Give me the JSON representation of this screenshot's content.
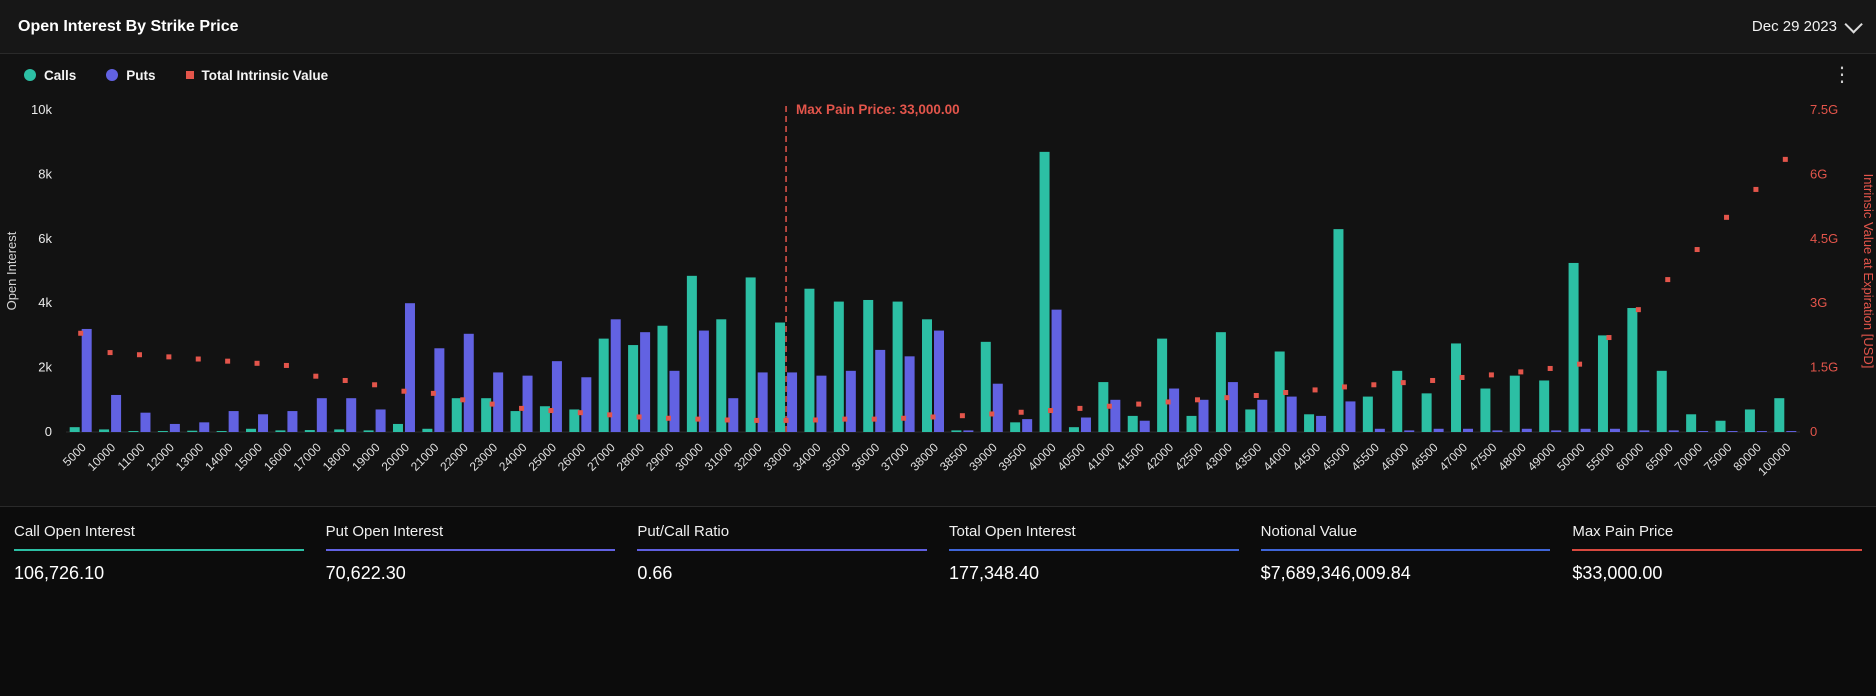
{
  "header": {
    "title": "Open Interest By Strike Price",
    "date": "Dec 29 2023"
  },
  "menu": {
    "kebab_icon": "⋮"
  },
  "chart_data": {
    "type": "bar",
    "title": "Open Interest By Strike Price",
    "categories": [
      "5000",
      "10000",
      "11000",
      "12000",
      "13000",
      "14000",
      "15000",
      "16000",
      "17000",
      "18000",
      "19000",
      "20000",
      "21000",
      "22000",
      "23000",
      "24000",
      "25000",
      "26000",
      "27000",
      "28000",
      "29000",
      "30000",
      "31000",
      "32000",
      "33000",
      "34000",
      "35000",
      "36000",
      "37000",
      "38000",
      "38500",
      "39000",
      "39500",
      "40000",
      "40500",
      "41000",
      "41500",
      "42000",
      "42500",
      "43000",
      "43500",
      "44000",
      "44500",
      "45000",
      "45500",
      "46000",
      "46500",
      "47000",
      "47500",
      "48000",
      "49000",
      "50000",
      "55000",
      "60000",
      "65000",
      "70000",
      "75000",
      "80000",
      "100000"
    ],
    "series": [
      {
        "name": "Calls",
        "type": "bar",
        "axis": "left",
        "color": "#2cbfa4",
        "values": [
          150,
          80,
          30,
          30,
          40,
          30,
          100,
          50,
          60,
          80,
          50,
          250,
          100,
          1050,
          1050,
          650,
          800,
          700,
          2900,
          2700,
          3300,
          4850,
          3500,
          4800,
          3400,
          4450,
          4050,
          4100,
          4050,
          3500,
          50,
          2800,
          300,
          8700,
          150,
          1550,
          500,
          2900,
          500,
          3100,
          700,
          2500,
          550,
          6300,
          1100,
          1900,
          1200,
          2750,
          1350,
          1750,
          1600,
          5250,
          3000,
          3850,
          1900,
          550,
          350,
          700,
          1050
        ]
      },
      {
        "name": "Puts",
        "type": "bar",
        "axis": "left",
        "color": "#6262e2",
        "values": [
          3200,
          1150,
          600,
          250,
          300,
          650,
          550,
          650,
          1050,
          1050,
          700,
          4000,
          2600,
          3050,
          1850,
          1750,
          2200,
          1700,
          3500,
          3100,
          1900,
          3150,
          1050,
          1850,
          1850,
          1750,
          1900,
          2550,
          2350,
          3150,
          50,
          1500,
          400,
          3800,
          450,
          1000,
          350,
          1350,
          1000,
          1550,
          1000,
          1100,
          500,
          950,
          100,
          50,
          100,
          100,
          50,
          100,
          50,
          100,
          100,
          50,
          50,
          30,
          30,
          30,
          30
        ]
      },
      {
        "name": "Total Intrinsic Value",
        "type": "scatter",
        "axis": "right",
        "color": "#e3554b",
        "unit": "G",
        "values": [
          2.3,
          1.85,
          1.8,
          1.75,
          1.7,
          1.65,
          1.6,
          1.55,
          1.3,
          1.2,
          1.1,
          0.95,
          0.9,
          0.75,
          0.65,
          0.55,
          0.5,
          0.45,
          0.4,
          0.35,
          0.32,
          0.3,
          0.28,
          0.27,
          0.27,
          0.28,
          0.3,
          0.3,
          0.32,
          0.35,
          0.38,
          0.42,
          0.46,
          0.5,
          0.55,
          0.6,
          0.65,
          0.7,
          0.75,
          0.8,
          0.85,
          0.92,
          0.98,
          1.05,
          1.1,
          1.15,
          1.2,
          1.27,
          1.33,
          1.4,
          1.48,
          1.58,
          2.2,
          2.85,
          3.55,
          4.25,
          5.0,
          5.65,
          6.35
        ]
      }
    ],
    "left_axis": {
      "label": "Open Interest",
      "ticks": [
        "0",
        "2k",
        "4k",
        "6k",
        "8k",
        "10k"
      ],
      "max": 10000
    },
    "right_axis": {
      "label": "Intrinsic Value at Expiration [USD]",
      "ticks": [
        "0",
        "1.5G",
        "3G",
        "4.5G",
        "6G",
        "7.5G"
      ],
      "max": 7.5
    },
    "annotation": {
      "label": "Max Pain Price: 33,000.00",
      "category": "33000",
      "color": "#e3554b"
    },
    "legend_position": "top-left",
    "grid": false
  },
  "stats": [
    {
      "label": "Call Open Interest",
      "value": "106,726.10",
      "color": "#2cbfa4"
    },
    {
      "label": "Put Open Interest",
      "value": "70,622.30",
      "color": "#6262e2"
    },
    {
      "label": "Put/Call Ratio",
      "value": "0.66",
      "color": "#5f5fe0"
    },
    {
      "label": "Total Open Interest",
      "value": "177,348.40",
      "color": "#3f66d9"
    },
    {
      "label": "Notional Value",
      "value": "$7,689,346,009.84",
      "color": "#3f66d9"
    },
    {
      "label": "Max Pain Price",
      "value": "$33,000.00",
      "color": "#d9493f"
    }
  ]
}
